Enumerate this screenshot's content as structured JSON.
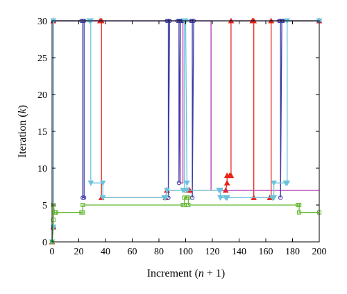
{
  "chart_data": {
    "type": "line",
    "title": "",
    "xlabel": {
      "pre": "Increment (",
      "var": "n",
      "post": " + 1)"
    },
    "ylabel": {
      "pre": "Iteration (",
      "var": "k",
      "post": ")"
    },
    "xlim": [
      0,
      200
    ],
    "ylim": [
      0,
      30
    ],
    "xticks": [
      0,
      20,
      40,
      60,
      80,
      100,
      120,
      140,
      160,
      180,
      200
    ],
    "yticks": [
      0,
      5,
      10,
      15,
      20,
      25,
      30
    ],
    "grid": false,
    "legend": "none",
    "series": [
      {
        "color": "#e8251b",
        "marker": "triangle",
        "x": [
          0,
          1,
          1,
          36,
          37,
          37,
          85,
          86,
          86,
          102,
          103,
          103,
          130,
          131,
          131,
          133,
          134,
          134,
          150,
          151,
          151,
          163,
          164,
          164,
          200
        ],
        "y": [
          0,
          2,
          30,
          30,
          30,
          6,
          6,
          7,
          7,
          7,
          7,
          7,
          7,
          8,
          9,
          9,
          9,
          30,
          30,
          30,
          6,
          6,
          6,
          30,
          30
        ]
      },
      {
        "color": "#b03ab0",
        "marker": "none",
        "x": [
          0,
          1,
          1,
          95,
          96,
          96,
          98,
          98,
          118,
          119,
          119,
          200
        ],
        "y": [
          0,
          2,
          30,
          30,
          30,
          8,
          8,
          30,
          30,
          30,
          7,
          7
        ]
      },
      {
        "color": "#3a3aa8",
        "marker": "circle",
        "x": [
          0,
          1,
          1,
          22,
          23,
          23,
          24,
          24,
          86,
          87,
          87,
          88,
          94,
          95,
          95,
          96,
          97,
          98,
          104,
          105,
          105,
          106,
          170,
          171,
          171,
          172,
          173,
          200
        ],
        "y": [
          0,
          2,
          30,
          30,
          30,
          6,
          6,
          30,
          30,
          30,
          6,
          30,
          30,
          30,
          8,
          30,
          30,
          30,
          30,
          30,
          6,
          30,
          30,
          30,
          6,
          30,
          30,
          30
        ]
      },
      {
        "color": "#6cc3dc",
        "marker": "triangle-down",
        "x": [
          0,
          1,
          1,
          28,
          29,
          29,
          38,
          38,
          84,
          85,
          86,
          98,
          99,
          99,
          100,
          101,
          101,
          125,
          126,
          126,
          130,
          131,
          131,
          165,
          166,
          166,
          175,
          176,
          176,
          200
        ],
        "y": [
          0,
          2,
          30,
          30,
          30,
          8,
          8,
          6,
          6,
          6,
          7,
          7,
          7,
          30,
          30,
          8,
          7,
          7,
          7,
          6,
          6,
          6,
          6,
          6,
          6,
          8,
          8,
          8,
          30,
          30
        ]
      },
      {
        "color": "#62b730",
        "marker": "square",
        "x": [
          0,
          1,
          1,
          2,
          3,
          3,
          22,
          23,
          23,
          98,
          99,
          99,
          101,
          102,
          102,
          184,
          185,
          185,
          200
        ],
        "y": [
          0,
          3,
          5,
          4,
          4,
          4,
          4,
          4,
          5,
          5,
          5,
          6,
          6,
          6,
          5,
          5,
          5,
          4,
          4
        ]
      }
    ]
  }
}
